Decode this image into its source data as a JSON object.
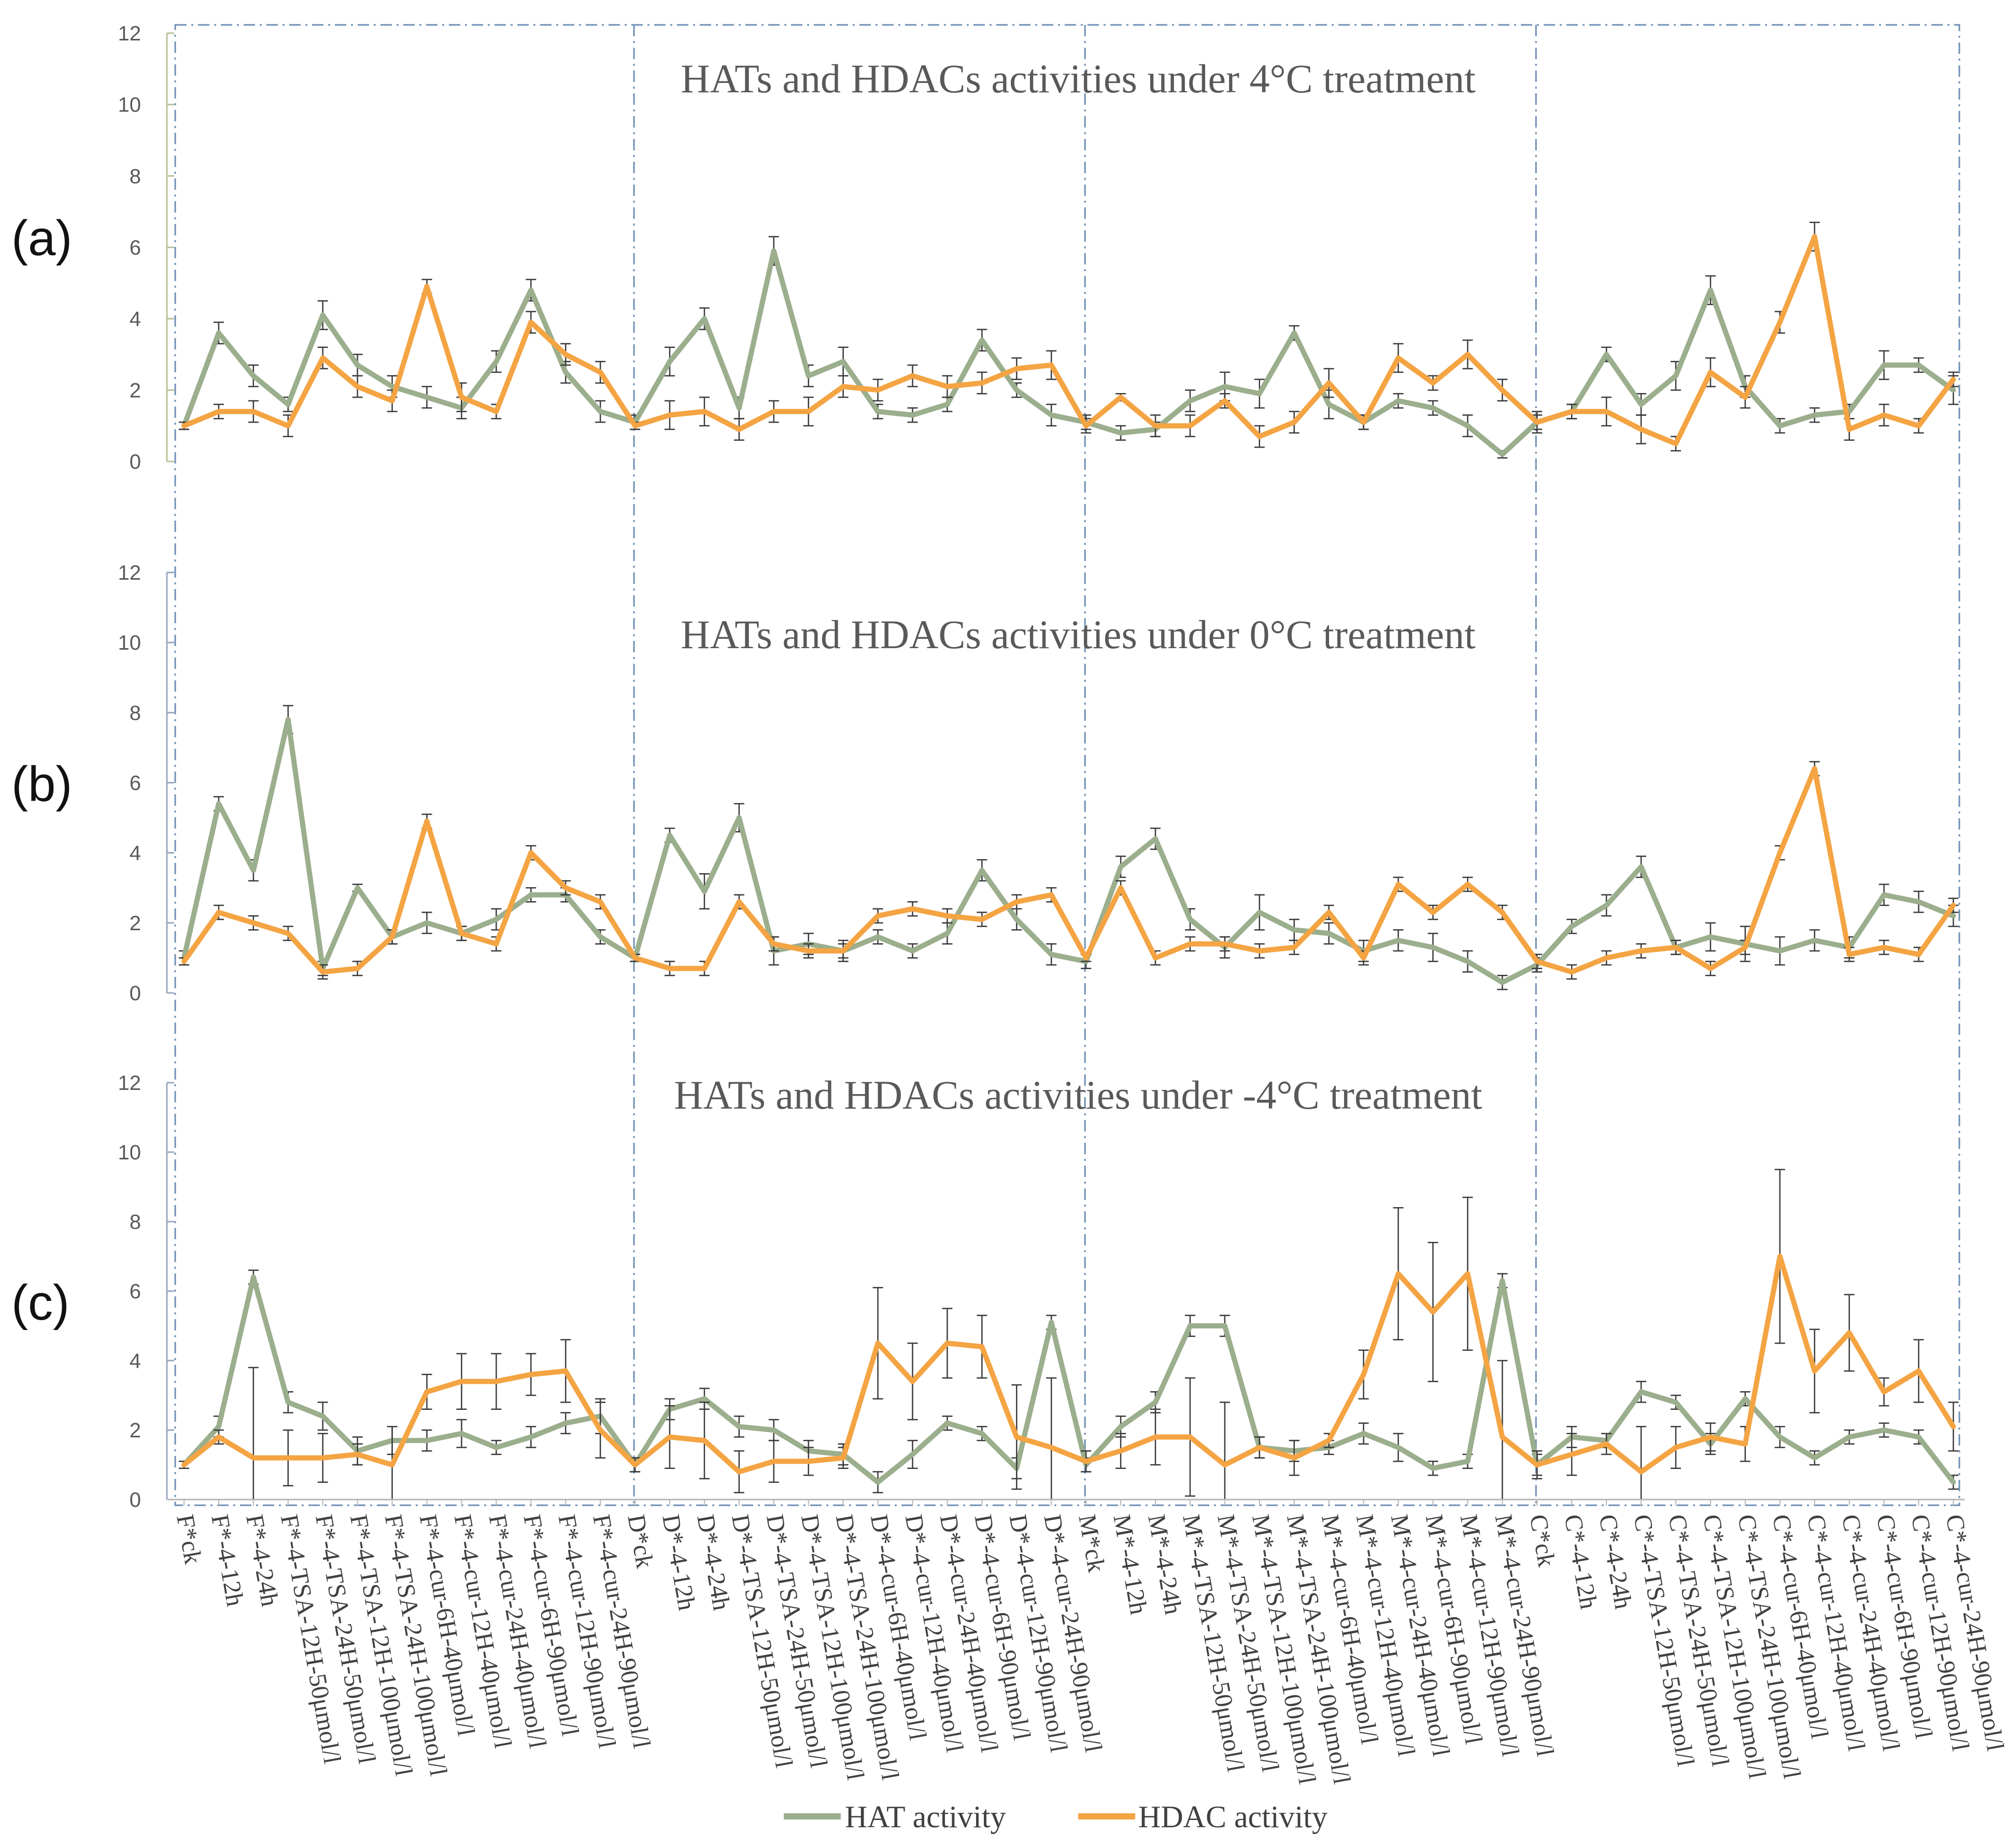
{
  "colors": {
    "hat": "#9bae8d",
    "hdac": "#f4a443",
    "divider": "#6f8fb5",
    "errorbar": "#3a3a3a",
    "axis": "#9aa9bf"
  },
  "chart_data": {
    "type": "line",
    "legend": {
      "hat": "HAT activity",
      "hdac": "HDAC activity",
      "position": "bottom"
    },
    "ylim": [
      0,
      12
    ],
    "yticks": [
      "0",
      "2",
      "4",
      "6",
      "8",
      "10",
      "12"
    ],
    "group_count": 4,
    "categories": [
      "F*ck",
      "F*-4-12h",
      "F*-4-24h",
      "F*-4-TSA-12H-50μmol/l",
      "F*-4-TSA-24H-50μmol/l",
      "F*-4-TSA-12H-100μmol/l",
      "F*-4-TSA-24H-100μmol/l",
      "F*-4-cur-6H-40μmol/l",
      "F*-4-cur-12H-40μmol/l",
      "F*-4-cur-24H-40μmol/l",
      "F*-4-cur-6H-90μmol/l",
      "F*-4-cur-12H-90μmol/l",
      "F*-4-cur-24H-90μmol/l",
      "D*ck",
      "D*-4-12h",
      "D*-4-24h",
      "D*-4-TSA-12H-50μmol/l",
      "D*-4-TSA-24H-50μmol/l",
      "D*-4-TSA-12H-100μmol/l",
      "D*-4-TSA-24H-100μmol/l",
      "D*-4-cur-6H-40μmol/l",
      "D*-4-cur-12H-40μmol/l",
      "D*-4-cur-24H-40μmol/l",
      "D*-4-cur-6H-90μmol/l",
      "D*-4-cur-12H-90μmol/l",
      "D*-4-cur-24H-90μmol/l",
      "M*ck",
      "M*-4-12h",
      "M*-4-24h",
      "M*-4-TSA-12H-50μmol/l",
      "M*-4-TSA-24H-50μmol/l",
      "M*-4-TSA-12H-100μmol/l",
      "M*-4-TSA-24H-100μmol/l",
      "M*-4-cur-6H-40μmol/l",
      "M*-4-cur-12H-40μmol/l",
      "M*-4-cur-24H-40μmol/l",
      "M*-4-cur-6H-90μmol/l",
      "M*-4-cur-12H-90μmol/l",
      "M*-4-cur-24H-90μmol/l",
      "C*ck",
      "C*-4-12h",
      "C*-4-24h",
      "C*-4-TSA-12H-50μmol/l",
      "C*-4-TSA-24H-50μmol/l",
      "C*-4-TSA-12H-100μmol/l",
      "C*-4-TSA-24H-100μmol/l",
      "C*-4-cur-6H-40μmol/l",
      "C*-4-cur-12H-40μmol/l",
      "C*-4-cur-24H-40μmol/l",
      "C*-4-cur-6H-90μmol/l",
      "C*-4-cur-12H-90μmol/l",
      "C*-4-cur-24H-90μmol/l"
    ],
    "panels": [
      {
        "label": "(a)",
        "title": "HATs and HDACs activities under 4°C treatment",
        "series": [
          {
            "name": "HAT activity",
            "values": [
              1.0,
              3.6,
              2.4,
              1.6,
              4.1,
              2.7,
              2.1,
              1.8,
              1.5,
              2.8,
              4.8,
              2.5,
              1.4,
              1.1,
              2.8,
              4.0,
              1.5,
              5.9,
              2.4,
              2.8,
              1.4,
              1.3,
              1.6,
              3.4,
              2.0,
              1.3,
              1.1,
              0.8,
              0.9,
              1.7,
              2.1,
              1.9,
              3.6,
              1.6,
              1.1,
              1.7,
              1.5,
              1.0,
              0.2,
              1.1,
              1.4,
              3.0,
              1.6,
              2.4,
              4.8,
              2.1,
              1.0,
              1.3,
              1.4,
              2.7,
              2.7,
              2.0
            ],
            "errors": [
              0.1,
              0.3,
              0.3,
              0.2,
              0.4,
              0.3,
              0.3,
              0.3,
              0.3,
              0.3,
              0.3,
              0.3,
              0.3,
              0.2,
              0.4,
              0.3,
              0.3,
              0.4,
              0.3,
              0.4,
              0.2,
              0.2,
              0.2,
              0.3,
              0.2,
              0.3,
              0.2,
              0.2,
              0.2,
              0.3,
              0.4,
              0.4,
              0.2,
              0.4,
              0.2,
              0.2,
              0.2,
              0.3,
              0.1,
              0.2,
              0.2,
              0.2,
              0.3,
              0.4,
              0.4,
              0.3,
              0.2,
              0.2,
              0.2,
              0.4,
              0.2,
              0.4
            ]
          },
          {
            "name": "HDAC activity",
            "values": [
              1.0,
              1.4,
              1.4,
              1.0,
              2.9,
              2.1,
              1.7,
              4.9,
              1.8,
              1.4,
              3.9,
              3.0,
              2.5,
              1.0,
              1.3,
              1.4,
              0.9,
              1.4,
              1.4,
              2.1,
              2.0,
              2.4,
              2.1,
              2.2,
              2.6,
              2.7,
              1.0,
              1.8,
              1.0,
              1.0,
              1.7,
              0.7,
              1.1,
              2.2,
              1.1,
              2.9,
              2.2,
              3.0,
              2.0,
              1.1,
              1.4,
              1.4,
              0.9,
              0.5,
              2.5,
              1.8,
              3.9,
              6.3,
              0.9,
              1.3,
              1.0,
              2.3
            ],
            "errors": [
              0.1,
              0.2,
              0.3,
              0.3,
              0.3,
              0.3,
              0.3,
              0.2,
              0.4,
              0.2,
              0.3,
              0.3,
              0.3,
              0.1,
              0.4,
              0.4,
              0.3,
              0.3,
              0.4,
              0.3,
              0.3,
              0.3,
              0.3,
              0.3,
              0.3,
              0.4,
              0.2,
              0.1,
              0.3,
              0.3,
              0.2,
              0.3,
              0.3,
              0.4,
              0.2,
              0.4,
              0.2,
              0.4,
              0.3,
              0.3,
              0.2,
              0.4,
              0.4,
              0.2,
              0.4,
              0.3,
              0.3,
              0.4,
              0.3,
              0.3,
              0.2,
              0.2
            ]
          }
        ]
      },
      {
        "label": "(b)",
        "title": "HATs and HDACs activities under 0°C treatment",
        "series": [
          {
            "name": "HAT activity",
            "values": [
              1.0,
              5.4,
              3.5,
              7.8,
              0.7,
              3.0,
              1.6,
              2.0,
              1.7,
              2.1,
              2.8,
              2.8,
              1.6,
              1.0,
              4.5,
              2.9,
              5.0,
              1.2,
              1.4,
              1.2,
              1.6,
              1.2,
              1.7,
              3.5,
              2.1,
              1.1,
              0.9,
              3.6,
              4.4,
              2.1,
              1.3,
              2.3,
              1.8,
              1.7,
              1.2,
              1.5,
              1.3,
              0.9,
              0.3,
              0.8,
              1.9,
              2.5,
              3.6,
              1.3,
              1.6,
              1.4,
              1.2,
              1.5,
              1.3,
              2.8,
              2.6,
              2.2
            ],
            "errors": [
              0.2,
              0.2,
              0.3,
              0.4,
              0.2,
              0.1,
              0.2,
              0.3,
              0.2,
              0.3,
              0.2,
              0.2,
              0.2,
              0.1,
              0.2,
              0.5,
              0.4,
              0.4,
              0.3,
              0.3,
              0.2,
              0.2,
              0.3,
              0.3,
              0.3,
              0.3,
              0.2,
              0.3,
              0.3,
              0.3,
              0.3,
              0.5,
              0.3,
              0.3,
              0.3,
              0.3,
              0.4,
              0.3,
              0.2,
              0.2,
              0.2,
              0.3,
              0.3,
              0.2,
              0.4,
              0.5,
              0.4,
              0.3,
              0.3,
              0.3,
              0.3,
              0.3
            ]
          },
          {
            "name": "HDAC activity",
            "values": [
              0.9,
              2.3,
              2.0,
              1.7,
              0.6,
              0.7,
              1.6,
              4.9,
              1.7,
              1.4,
              4.0,
              3.0,
              2.6,
              1.0,
              0.7,
              0.7,
              2.6,
              1.4,
              1.2,
              1.2,
              2.2,
              2.4,
              2.2,
              2.1,
              2.6,
              2.8,
              1.0,
              3.0,
              1.0,
              1.4,
              1.4,
              1.2,
              1.3,
              2.3,
              1.0,
              3.1,
              2.3,
              3.1,
              2.3,
              0.9,
              0.6,
              1.0,
              1.2,
              1.3,
              0.7,
              1.3,
              4.0,
              6.4,
              1.1,
              1.3,
              1.1,
              2.5
            ],
            "errors": [
              0.1,
              0.2,
              0.2,
              0.2,
              0.2,
              0.2,
              0.2,
              0.2,
              0.2,
              0.2,
              0.2,
              0.2,
              0.2,
              0.1,
              0.2,
              0.2,
              0.2,
              0.2,
              0.2,
              0.2,
              0.2,
              0.2,
              0.2,
              0.2,
              0.2,
              0.2,
              0.1,
              0.2,
              0.2,
              0.2,
              0.2,
              0.2,
              0.2,
              0.2,
              0.2,
              0.2,
              0.2,
              0.2,
              0.2,
              0.2,
              0.2,
              0.2,
              0.2,
              0.2,
              0.2,
              0.2,
              0.2,
              0.2,
              0.2,
              0.2,
              0.2,
              0.2
            ]
          }
        ]
      },
      {
        "label": "(c)",
        "title": "HATs and HDACs activities under -4°C treatment",
        "series": [
          {
            "name": "HAT activity",
            "values": [
              1.0,
              2.1,
              6.4,
              2.8,
              2.4,
              1.4,
              1.7,
              1.7,
              1.9,
              1.5,
              1.8,
              2.2,
              2.4,
              1.0,
              2.6,
              2.9,
              2.1,
              2.0,
              1.4,
              1.3,
              0.5,
              1.3,
              2.2,
              1.9,
              0.9,
              5.1,
              1.0,
              2.1,
              2.8,
              5.0,
              5.0,
              1.5,
              1.4,
              1.5,
              1.9,
              1.5,
              0.9,
              1.1,
              6.3,
              1.0,
              1.8,
              1.7,
              3.1,
              2.8,
              1.6,
              2.9,
              1.8,
              1.2,
              1.8,
              2.0,
              1.8,
              0.5
            ],
            "errors": [
              0.1,
              0.3,
              0.2,
              0.3,
              0.4,
              0.4,
              0.4,
              0.3,
              0.4,
              0.2,
              0.3,
              0.3,
              0.5,
              0.2,
              0.3,
              0.3,
              0.3,
              0.3,
              0.3,
              0.3,
              0.3,
              0.4,
              0.2,
              0.2,
              0.3,
              0.2,
              0.2,
              0.3,
              0.3,
              0.3,
              0.3,
              0.3,
              0.3,
              0.2,
              0.3,
              0.4,
              0.2,
              0.2,
              0.2,
              0.3,
              0.3,
              0.2,
              0.3,
              0.2,
              0.3,
              0.2,
              0.3,
              0.2,
              0.2,
              0.2,
              0.2,
              0.2
            ]
          },
          {
            "name": "HDAC activity",
            "values": [
              1.0,
              1.8,
              1.2,
              1.2,
              1.2,
              1.3,
              1.0,
              3.1,
              3.4,
              3.4,
              3.6,
              3.7,
              2.0,
              1.0,
              1.8,
              1.7,
              0.8,
              1.1,
              1.1,
              1.2,
              4.5,
              3.4,
              4.5,
              4.4,
              1.8,
              1.5,
              1.1,
              1.4,
              1.8,
              1.8,
              1.0,
              1.5,
              1.2,
              1.7,
              3.6,
              6.5,
              5.4,
              6.5,
              1.8,
              1.0,
              1.3,
              1.6,
              0.8,
              1.5,
              1.8,
              1.6,
              7.0,
              3.7,
              4.8,
              3.1,
              3.7,
              2.1
            ],
            "errors": [
              0.1,
              0.2,
              2.6,
              0.8,
              0.7,
              0.3,
              1.1,
              0.5,
              0.8,
              0.8,
              0.6,
              0.9,
              0.8,
              0.2,
              0.9,
              1.1,
              0.6,
              0.6,
              0.4,
              0.3,
              1.6,
              1.1,
              1.0,
              0.9,
              1.5,
              2.0,
              0.3,
              0.5,
              0.8,
              1.7,
              1.8,
              0.3,
              0.5,
              0.2,
              0.7,
              1.9,
              2.0,
              2.2,
              2.2,
              0.4,
              0.6,
              0.3,
              1.3,
              0.6,
              0.4,
              0.5,
              2.5,
              1.2,
              1.1,
              0.4,
              0.9,
              0.7
            ]
          }
        ]
      }
    ]
  }
}
